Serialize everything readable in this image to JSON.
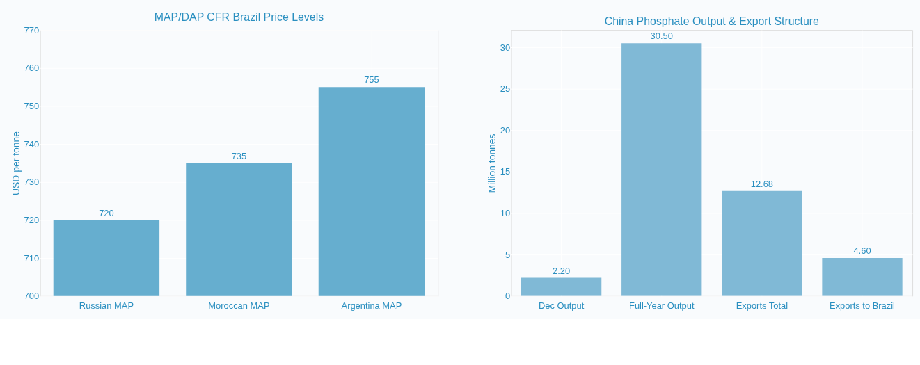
{
  "chart_data": [
    {
      "type": "bar",
      "title": "MAP/DAP CFR Brazil Price Levels",
      "ylabel": "USD per tonne",
      "categories": [
        "Russian MAP",
        "Moroccan MAP",
        "Argentina MAP"
      ],
      "values": [
        720,
        735,
        755
      ],
      "color": "#66aecf",
      "ylim": [
        700,
        770
      ],
      "yticks": [
        700,
        710,
        720,
        730,
        740,
        750,
        760,
        770
      ],
      "grid": true,
      "data_labels": true
    },
    {
      "type": "bar",
      "title": "China Phosphate Output & Export Structure",
      "ylabel": "Million tonnes",
      "categories": [
        "Dec Output",
        "Full-Year Output",
        "Exports Total",
        "Exports to Brazil"
      ],
      "values": [
        2.2,
        30.5,
        12.68,
        4.6
      ],
      "value_labels": [
        "2.20",
        "30.50",
        "12.68",
        "4.60"
      ],
      "color": "#80b9d6",
      "ylim": [
        0,
        32.1
      ],
      "yticks": [
        0,
        5,
        10,
        15,
        20,
        25,
        30
      ],
      "grid": true
    }
  ]
}
